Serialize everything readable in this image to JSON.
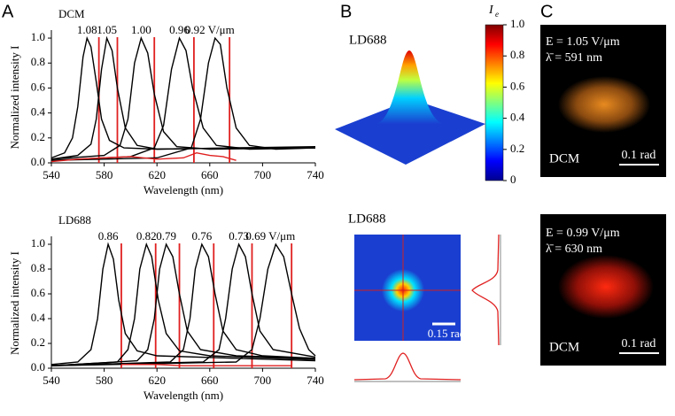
{
  "panel_labels": [
    "A",
    "B",
    "C"
  ],
  "chart_data": [
    {
      "type": "line",
      "title": "DCM",
      "xlabel": "Wavelength (nm)",
      "ylabel": "Normalized intensity I",
      "xlim": [
        540,
        740
      ],
      "xticks": [
        540,
        580,
        620,
        660,
        700,
        740
      ],
      "ylim": [
        0,
        1.05
      ],
      "yticks": [
        {
          "value": 0,
          "label": "0.0"
        },
        0.2,
        0.4,
        0.6,
        0.8,
        {
          "value": 1,
          "label": "1.0"
        }
      ],
      "annotations": [
        "1.08",
        "1.05",
        "1.00",
        "0.96",
        "0.92 V/μm"
      ],
      "series": [
        {
          "color": "#000000",
          "x": [
            540,
            550,
            556,
            560,
            564,
            567,
            570,
            574,
            578,
            584,
            595,
            620,
            680,
            740
          ],
          "values": [
            0.04,
            0.08,
            0.2,
            0.45,
            0.85,
            1.0,
            0.93,
            0.65,
            0.35,
            0.18,
            0.12,
            0.11,
            0.12,
            0.13
          ]
        },
        {
          "color": "#000000",
          "x": [
            540,
            560,
            570,
            574,
            578,
            582,
            586,
            590,
            596,
            605,
            620,
            680,
            740
          ],
          "values": [
            0.03,
            0.06,
            0.15,
            0.35,
            0.75,
            1.0,
            0.9,
            0.6,
            0.28,
            0.14,
            0.11,
            0.12,
            0.12
          ]
        },
        {
          "color": "#000000",
          "x": [
            540,
            580,
            592,
            598,
            603,
            608,
            613,
            618,
            625,
            635,
            660,
            740
          ],
          "values": [
            0.03,
            0.06,
            0.14,
            0.35,
            0.8,
            1.0,
            0.88,
            0.55,
            0.25,
            0.13,
            0.11,
            0.12
          ]
        },
        {
          "color": "#000000",
          "x": [
            540,
            600,
            618,
            625,
            631,
            637,
            642,
            647,
            655,
            665,
            690,
            740
          ],
          "values": [
            0.02,
            0.05,
            0.12,
            0.3,
            0.75,
            1.0,
            0.9,
            0.6,
            0.28,
            0.14,
            0.11,
            0.12
          ]
        },
        {
          "color": "#000000",
          "x": [
            540,
            620,
            646,
            653,
            659,
            664,
            668,
            673,
            680,
            690,
            710,
            740
          ],
          "values": [
            0.02,
            0.04,
            0.12,
            0.35,
            0.8,
            1.0,
            0.95,
            0.6,
            0.28,
            0.14,
            0.11,
            0.12
          ]
        },
        {
          "color": "#e02020",
          "x": [
            540,
            560,
            580,
            600,
            620,
            640,
            650,
            660,
            670,
            680
          ],
          "values": [
            0.01,
            0.03,
            0.04,
            0.05,
            0.03,
            0.04,
            0.08,
            0.06,
            0.05,
            0.02
          ]
        }
      ],
      "vlines": {
        "color": "#e02020",
        "x": [
          576,
          590,
          618,
          648,
          675
        ]
      }
    },
    {
      "type": "line",
      "title": "LD688",
      "xlabel": "Wavelength (nm)",
      "ylabel": "Normalized intensity I",
      "xlim": [
        540,
        740
      ],
      "xticks": [
        540,
        580,
        620,
        660,
        700,
        740
      ],
      "ylim": [
        0,
        1.05
      ],
      "yticks": [
        {
          "value": 0,
          "label": "0.0"
        },
        0.2,
        0.4,
        0.6,
        0.8,
        {
          "value": 1,
          "label": "1.0"
        }
      ],
      "annotations": [
        "0.86",
        "0.82",
        "0.79",
        "0.76",
        "0.73",
        "0.69 V/μm"
      ],
      "series": [
        {
          "color": "#000000",
          "x": [
            540,
            560,
            570,
            575,
            579,
            583,
            587,
            591,
            596,
            605,
            620,
            680,
            740
          ],
          "values": [
            0.03,
            0.05,
            0.15,
            0.4,
            0.8,
            1.0,
            0.88,
            0.55,
            0.28,
            0.14,
            0.1,
            0.08,
            0.06
          ]
        },
        {
          "color": "#000000",
          "x": [
            540,
            590,
            598,
            603,
            607,
            612,
            616,
            621,
            627,
            637,
            660,
            740
          ],
          "values": [
            0.02,
            0.05,
            0.15,
            0.4,
            0.8,
            1.0,
            0.9,
            0.55,
            0.28,
            0.14,
            0.1,
            0.07
          ]
        },
        {
          "color": "#000000",
          "x": [
            540,
            605,
            613,
            618,
            622,
            627,
            632,
            637,
            643,
            653,
            680,
            740
          ],
          "values": [
            0.02,
            0.06,
            0.15,
            0.4,
            0.8,
            1.0,
            0.9,
            0.6,
            0.3,
            0.15,
            0.1,
            0.08
          ]
        },
        {
          "color": "#000000",
          "x": [
            540,
            630,
            640,
            645,
            649,
            654,
            659,
            664,
            670,
            680,
            700,
            740
          ],
          "values": [
            0.02,
            0.05,
            0.15,
            0.4,
            0.8,
            1.0,
            0.9,
            0.6,
            0.3,
            0.15,
            0.1,
            0.08
          ]
        },
        {
          "color": "#000000",
          "x": [
            540,
            655,
            667,
            672,
            677,
            682,
            687,
            692,
            698,
            708,
            740
          ],
          "values": [
            0.02,
            0.05,
            0.15,
            0.4,
            0.8,
            1.0,
            0.9,
            0.6,
            0.3,
            0.15,
            0.09
          ]
        },
        {
          "color": "#000000",
          "x": [
            540,
            680,
            692,
            698,
            704,
            710,
            716,
            722,
            728,
            735,
            740
          ],
          "values": [
            0.02,
            0.05,
            0.15,
            0.4,
            0.8,
            1.0,
            0.9,
            0.6,
            0.32,
            0.15,
            0.1
          ]
        },
        {
          "color": "#e02020",
          "x": [
            593,
            620,
            640,
            660,
            690,
            722
          ],
          "values": [
            0.03,
            0.03,
            0.02,
            0.02,
            0.02,
            0.02
          ]
        }
      ],
      "vlines": {
        "color": "#e02020",
        "x": [
          593,
          619,
          637,
          663,
          692,
          722
        ]
      }
    }
  ],
  "panel_b": {
    "surface_title": "LD688",
    "colorbar": {
      "label": "I",
      "label_sub": "e",
      "ticks": [
        0,
        0.2,
        0.4,
        0.6,
        0.8,
        {
          "value": 1,
          "label": "1.0"
        }
      ]
    },
    "image_title": "LD688",
    "scale_bar": "0.15 rad"
  },
  "panel_c": {
    "images": [
      {
        "field": "E = 1.05 V/μm",
        "wavelength": "λ̄ = 591 nm",
        "dye": "DCM",
        "scale_bar": "0.1 rad"
      },
      {
        "field": "E = 0.99 V/μm",
        "wavelength": "λ̄ = 630 nm",
        "dye": "DCM",
        "scale_bar": "0.1 rad"
      }
    ]
  }
}
